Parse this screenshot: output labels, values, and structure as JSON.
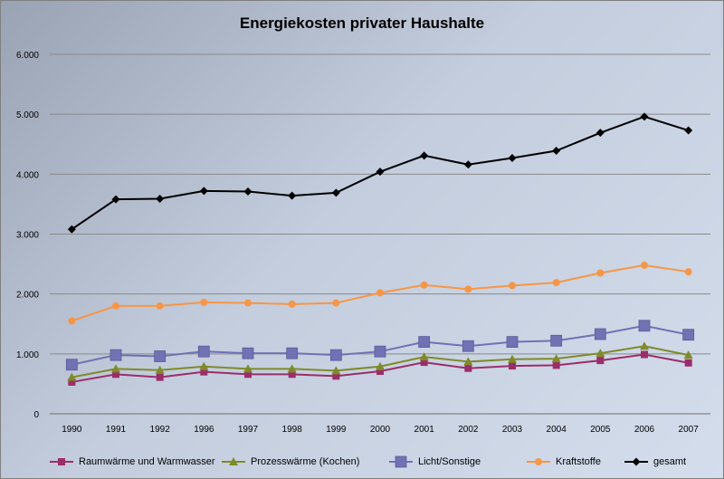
{
  "chart_data": {
    "type": "line",
    "title": "Energiekosten privater Haushalte",
    "categories": [
      "1990",
      "1991",
      "1992",
      "1996",
      "1997",
      "1998",
      "1999",
      "2000",
      "2001",
      "2002",
      "2003",
      "2004",
      "2005",
      "2006",
      "2007"
    ],
    "ylim": [
      0,
      6000
    ],
    "yticks": [
      0,
      1000,
      2000,
      3000,
      4000,
      5000,
      6000
    ],
    "ytick_labels": [
      "0",
      "1.000",
      "2.000",
      "3.000",
      "4.000",
      "5.000",
      "6.000"
    ],
    "grid": true,
    "legend_position": "bottom",
    "series": [
      {
        "name": "Raumwärme und Warmwasser",
        "color": "#9b2d6a",
        "marker": "square",
        "values": [
          530,
          660,
          610,
          700,
          660,
          660,
          630,
          710,
          860,
          760,
          800,
          810,
          890,
          990,
          850
        ]
      },
      {
        "name": "Prozesswärme (Kochen)",
        "color": "#7f8a2a",
        "marker": "triangle",
        "values": [
          610,
          750,
          730,
          790,
          750,
          750,
          720,
          790,
          950,
          870,
          910,
          920,
          1010,
          1130,
          980
        ]
      },
      {
        "name": "Licht/Sonstige",
        "color": "#7072b4",
        "marker": "square-large",
        "values": [
          820,
          980,
          960,
          1040,
          1010,
          1010,
          980,
          1040,
          1200,
          1130,
          1200,
          1220,
          1330,
          1470,
          1320
        ]
      },
      {
        "name": "Kraftstoffe",
        "color": "#f79646",
        "marker": "circle",
        "values": [
          1550,
          1800,
          1800,
          1860,
          1850,
          1830,
          1850,
          2020,
          2150,
          2080,
          2140,
          2190,
          2350,
          2480,
          2370
        ]
      },
      {
        "name": "gesamt",
        "color": "#000000",
        "marker": "diamond",
        "values": [
          3080,
          3580,
          3590,
          3720,
          3710,
          3640,
          3690,
          4040,
          4310,
          4160,
          4270,
          4390,
          4690,
          4960,
          4730
        ]
      }
    ]
  }
}
